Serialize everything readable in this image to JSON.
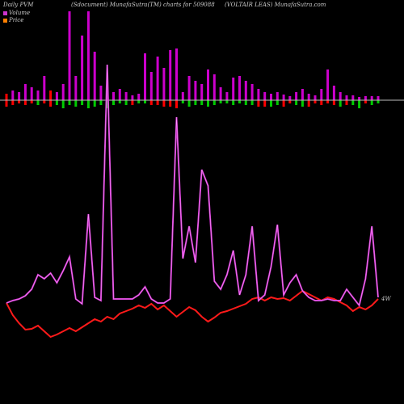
{
  "header": {
    "left": "Daily PVM",
    "center": "(Sdocument) MunafaSutra(TM) charts for 509088",
    "right": "(VOLTAIR LEAS) MunafaSutra.com"
  },
  "legend": {
    "volume_label": "Volume",
    "price_label": "Price",
    "volume_color": "#cc33cc",
    "price_color": "#ff7f00"
  },
  "end_label": "4W",
  "colors": {
    "background": "#000000",
    "price_line": "#ff1a1a",
    "price_line_alt": "#ff3333",
    "pvm_line": "#cc33cc",
    "pvm_line_highlight": "#ff99ff",
    "bar_up": "#cc00cc",
    "bar_red": "#ff0000",
    "bar_green": "#00cc00",
    "baseline": "#bbbbbb"
  },
  "chart_data": {
    "type": "line",
    "points": 60,
    "series": [
      {
        "role": "price",
        "values": [
          375,
          390,
          400,
          408,
          407,
          403,
          410,
          417,
          414,
          410,
          406,
          410,
          405,
          400,
          395,
          398,
          392,
          395,
          388,
          385,
          382,
          378,
          381,
          376,
          383,
          378,
          385,
          392,
          386,
          380,
          384,
          392,
          398,
          393,
          387,
          385,
          382,
          379,
          376,
          370,
          368,
          372,
          368,
          370,
          369,
          372,
          366,
          360,
          364,
          368,
          372,
          368,
          370,
          374,
          378,
          385,
          380,
          383,
          378,
          370
        ]
      },
      {
        "role": "pvm",
        "values": [
          375,
          372,
          370,
          366,
          358,
          340,
          345,
          338,
          350,
          335,
          318,
          370,
          376,
          265,
          368,
          372,
          80,
          370,
          370,
          370,
          370,
          365,
          355,
          370,
          375,
          375,
          370,
          145,
          320,
          280,
          325,
          210,
          230,
          348,
          358,
          340,
          310,
          365,
          340,
          280,
          372,
          365,
          330,
          278,
          365,
          350,
          340,
          360,
          368,
          372,
          372,
          370,
          372,
          372,
          358,
          368,
          378,
          345,
          280,
          368
        ]
      }
    ],
    "volume_bars": {
      "top_values": [
        8,
        12,
        10,
        20,
        16,
        12,
        30,
        12,
        10,
        20,
        110,
        30,
        80,
        110,
        60,
        18,
        14,
        10,
        14,
        10,
        6,
        8,
        58,
        35,
        54,
        40,
        62,
        64,
        10,
        30,
        24,
        20,
        38,
        32,
        16,
        10,
        28,
        30,
        24,
        20,
        14,
        10,
        8,
        10,
        7,
        5,
        10,
        14,
        8,
        6,
        14,
        38,
        18,
        10,
        6,
        6,
        4,
        5,
        5,
        5
      ],
      "top_colors": [
        "red",
        "magenta",
        "magenta",
        "magenta",
        "magenta",
        "magenta",
        "magenta",
        "red",
        "magenta",
        "magenta",
        "magenta",
        "magenta",
        "magenta",
        "magenta",
        "magenta",
        "magenta",
        "magenta",
        "magenta",
        "magenta",
        "magenta",
        "magenta",
        "magenta",
        "magenta",
        "magenta",
        "magenta",
        "magenta",
        "magenta",
        "magenta",
        "magenta",
        "magenta",
        "magenta",
        "magenta",
        "magenta",
        "magenta",
        "magenta",
        "magenta",
        "magenta",
        "magenta",
        "magenta",
        "magenta",
        "magenta",
        "magenta",
        "magenta",
        "magenta",
        "magenta",
        "magenta",
        "magenta",
        "magenta",
        "magenta",
        "magenta",
        "magenta",
        "magenta",
        "magenta",
        "magenta",
        "magenta",
        "magenta",
        "magenta",
        "magenta",
        "magenta",
        "magenta"
      ],
      "bottom_values": [
        8,
        6,
        4,
        6,
        4,
        6,
        4,
        8,
        6,
        10,
        6,
        8,
        6,
        10,
        8,
        6,
        10,
        6,
        4,
        6,
        6,
        4,
        4,
        6,
        6,
        8,
        8,
        10,
        4,
        8,
        6,
        6,
        8,
        6,
        4,
        4,
        6,
        4,
        6,
        6,
        8,
        8,
        8,
        6,
        8,
        4,
        6,
        8,
        8,
        4,
        6,
        4,
        6,
        8,
        6,
        6,
        10,
        4,
        6,
        4
      ],
      "bottom_colors": [
        "red",
        "red",
        "red",
        "red",
        "red",
        "green",
        "red",
        "red",
        "green",
        "green",
        "green",
        "green",
        "green",
        "green",
        "green",
        "green",
        "green",
        "green",
        "green",
        "green",
        "red",
        "green",
        "green",
        "red",
        "red",
        "red",
        "red",
        "red",
        "green",
        "green",
        "green",
        "green",
        "green",
        "green",
        "green",
        "green",
        "green",
        "green",
        "green",
        "green",
        "red",
        "red",
        "green",
        "green",
        "red",
        "red",
        "green",
        "green",
        "red",
        "red",
        "red",
        "red",
        "red",
        "green",
        "red",
        "green",
        "green",
        "red",
        "green",
        "green"
      ]
    }
  }
}
